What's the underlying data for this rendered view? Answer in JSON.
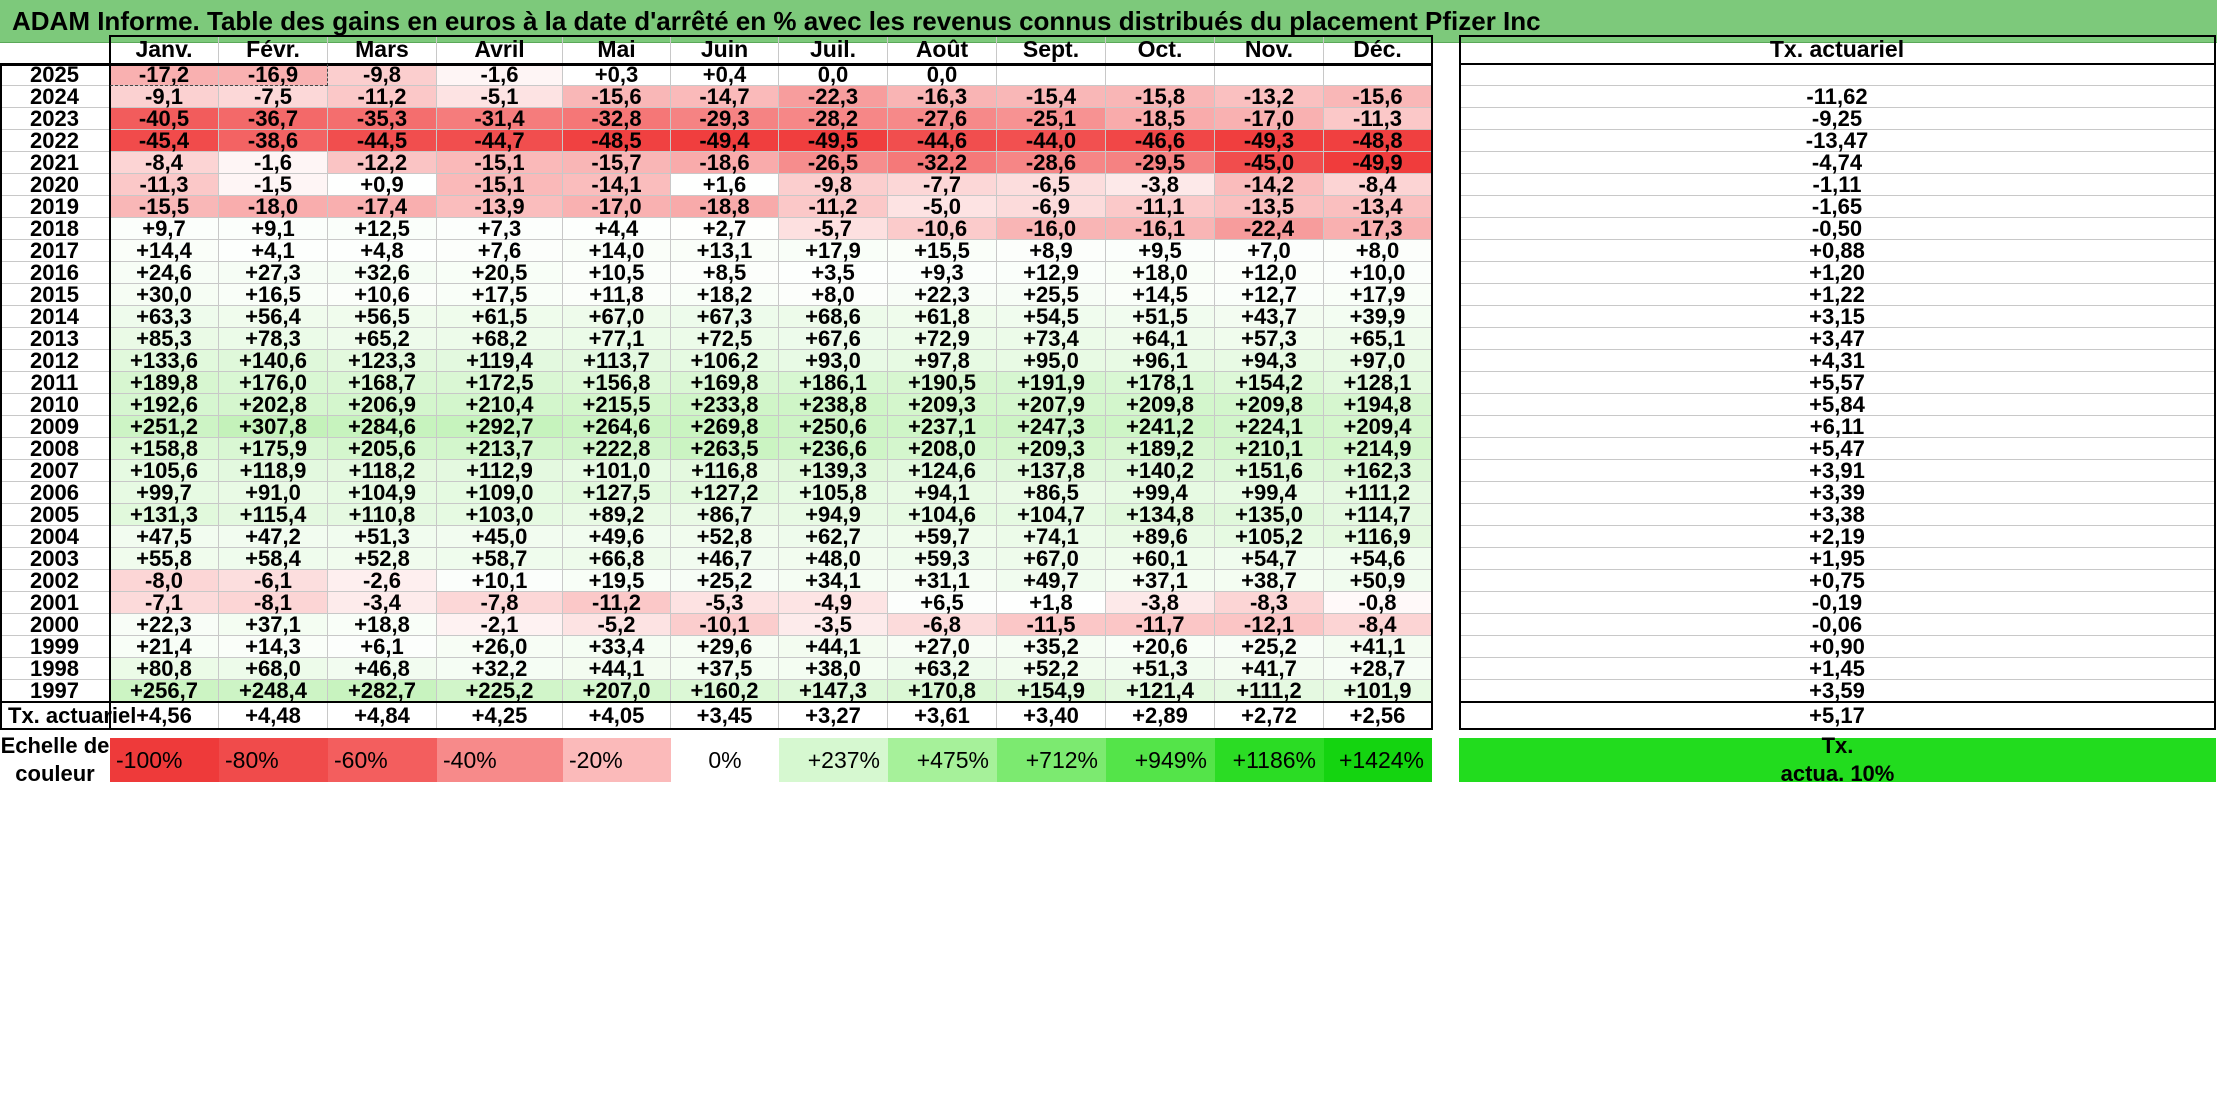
{
  "title": "ADAM Informe. Table des gains en euros à la date d'arrêté en % avec les revenus connus distribués du placement Pfizer Inc",
  "months": [
    "Janv.",
    "Févr.",
    "Mars",
    "Avril",
    "Mai",
    "Juin",
    "Juil.",
    "Août",
    "Sept.",
    "Oct.",
    "Nov.",
    "Déc."
  ],
  "rate_header": "Tx. actuariel",
  "rows": [
    {
      "year": "2025",
      "values": [
        "-17,2",
        "-16,9",
        "-9,8",
        "-1,6",
        "+0,3",
        "+0,4",
        "0,0",
        "0,0",
        "",
        "",
        "",
        ""
      ],
      "rate": ""
    },
    {
      "year": "2024",
      "values": [
        "-9,1",
        "-7,5",
        "-11,2",
        "-5,1",
        "-15,6",
        "-14,7",
        "-22,3",
        "-16,3",
        "-15,4",
        "-15,8",
        "-13,2",
        "-15,6"
      ],
      "rate": "-11,62"
    },
    {
      "year": "2023",
      "values": [
        "-40,5",
        "-36,7",
        "-35,3",
        "-31,4",
        "-32,8",
        "-29,3",
        "-28,2",
        "-27,6",
        "-25,1",
        "-18,5",
        "-17,0",
        "-11,3"
      ],
      "rate": "-9,25"
    },
    {
      "year": "2022",
      "values": [
        "-45,4",
        "-38,6",
        "-44,5",
        "-44,7",
        "-48,5",
        "-49,4",
        "-49,5",
        "-44,6",
        "-44,0",
        "-46,6",
        "-49,3",
        "-48,8"
      ],
      "rate": "-13,47"
    },
    {
      "year": "2021",
      "values": [
        "-8,4",
        "-1,6",
        "-12,2",
        "-15,1",
        "-15,7",
        "-18,6",
        "-26,5",
        "-32,2",
        "-28,6",
        "-29,5",
        "-45,0",
        "-49,9"
      ],
      "rate": "-4,74"
    },
    {
      "year": "2020",
      "values": [
        "-11,3",
        "-1,5",
        "+0,9",
        "-15,1",
        "-14,1",
        "+1,6",
        "-9,8",
        "-7,7",
        "-6,5",
        "-3,8",
        "-14,2",
        "-8,4"
      ],
      "rate": "-1,11"
    },
    {
      "year": "2019",
      "values": [
        "-15,5",
        "-18,0",
        "-17,4",
        "-13,9",
        "-17,0",
        "-18,8",
        "-11,2",
        "-5,0",
        "-6,9",
        "-11,1",
        "-13,5",
        "-13,4"
      ],
      "rate": "-1,65"
    },
    {
      "year": "2018",
      "values": [
        "+9,7",
        "+9,1",
        "+12,5",
        "+7,3",
        "+4,4",
        "+2,7",
        "-5,7",
        "-10,6",
        "-16,0",
        "-16,1",
        "-22,4",
        "-17,3"
      ],
      "rate": "-0,50"
    },
    {
      "year": "2017",
      "values": [
        "+14,4",
        "+4,1",
        "+4,8",
        "+7,6",
        "+14,0",
        "+13,1",
        "+17,9",
        "+15,5",
        "+8,9",
        "+9,5",
        "+7,0",
        "+8,0"
      ],
      "rate": "+0,88"
    },
    {
      "year": "2016",
      "values": [
        "+24,6",
        "+27,3",
        "+32,6",
        "+20,5",
        "+10,5",
        "+8,5",
        "+3,5",
        "+9,3",
        "+12,9",
        "+18,0",
        "+12,0",
        "+10,0"
      ],
      "rate": "+1,20"
    },
    {
      "year": "2015",
      "values": [
        "+30,0",
        "+16,5",
        "+10,6",
        "+17,5",
        "+11,8",
        "+18,2",
        "+8,0",
        "+22,3",
        "+25,5",
        "+14,5",
        "+12,7",
        "+17,9"
      ],
      "rate": "+1,22"
    },
    {
      "year": "2014",
      "values": [
        "+63,3",
        "+56,4",
        "+56,5",
        "+61,5",
        "+67,0",
        "+67,3",
        "+68,6",
        "+61,8",
        "+54,5",
        "+51,5",
        "+43,7",
        "+39,9"
      ],
      "rate": "+3,15"
    },
    {
      "year": "2013",
      "values": [
        "+85,3",
        "+78,3",
        "+65,2",
        "+68,2",
        "+77,1",
        "+72,5",
        "+67,6",
        "+72,9",
        "+73,4",
        "+64,1",
        "+57,3",
        "+65,1"
      ],
      "rate": "+3,47"
    },
    {
      "year": "2012",
      "values": [
        "+133,6",
        "+140,6",
        "+123,3",
        "+119,4",
        "+113,7",
        "+106,2",
        "+93,0",
        "+97,8",
        "+95,0",
        "+96,1",
        "+94,3",
        "+97,0"
      ],
      "rate": "+4,31"
    },
    {
      "year": "2011",
      "values": [
        "+189,8",
        "+176,0",
        "+168,7",
        "+172,5",
        "+156,8",
        "+169,8",
        "+186,1",
        "+190,5",
        "+191,9",
        "+178,1",
        "+154,2",
        "+128,1"
      ],
      "rate": "+5,57"
    },
    {
      "year": "2010",
      "values": [
        "+192,6",
        "+202,8",
        "+206,9",
        "+210,4",
        "+215,5",
        "+233,8",
        "+238,8",
        "+209,3",
        "+207,9",
        "+209,8",
        "+209,8",
        "+194,8"
      ],
      "rate": "+5,84"
    },
    {
      "year": "2009",
      "values": [
        "+251,2",
        "+307,8",
        "+284,6",
        "+292,7",
        "+264,6",
        "+269,8",
        "+250,6",
        "+237,1",
        "+247,3",
        "+241,2",
        "+224,1",
        "+209,4"
      ],
      "rate": "+6,11"
    },
    {
      "year": "2008",
      "values": [
        "+158,8",
        "+175,9",
        "+205,6",
        "+213,7",
        "+222,8",
        "+263,5",
        "+236,6",
        "+208,0",
        "+209,3",
        "+189,2",
        "+210,1",
        "+214,9"
      ],
      "rate": "+5,47"
    },
    {
      "year": "2007",
      "values": [
        "+105,6",
        "+118,9",
        "+118,2",
        "+112,9",
        "+101,0",
        "+116,8",
        "+139,3",
        "+124,6",
        "+137,8",
        "+140,2",
        "+151,6",
        "+162,3"
      ],
      "rate": "+3,91"
    },
    {
      "year": "2006",
      "values": [
        "+99,7",
        "+91,0",
        "+104,9",
        "+109,0",
        "+127,5",
        "+127,2",
        "+105,8",
        "+94,1",
        "+86,5",
        "+99,4",
        "+99,4",
        "+111,2"
      ],
      "rate": "+3,39"
    },
    {
      "year": "2005",
      "values": [
        "+131,3",
        "+115,4",
        "+110,8",
        "+103,0",
        "+89,2",
        "+86,7",
        "+94,9",
        "+104,6",
        "+104,7",
        "+134,8",
        "+135,0",
        "+114,7"
      ],
      "rate": "+3,38"
    },
    {
      "year": "2004",
      "values": [
        "+47,5",
        "+47,2",
        "+51,3",
        "+45,0",
        "+49,6",
        "+52,8",
        "+62,7",
        "+59,7",
        "+74,1",
        "+89,6",
        "+105,2",
        "+116,9"
      ],
      "rate": "+2,19"
    },
    {
      "year": "2003",
      "values": [
        "+55,8",
        "+58,4",
        "+52,8",
        "+58,7",
        "+66,8",
        "+46,7",
        "+48,0",
        "+59,3",
        "+67,0",
        "+60,1",
        "+54,7",
        "+54,6"
      ],
      "rate": "+1,95"
    },
    {
      "year": "2002",
      "values": [
        "-8,0",
        "-6,1",
        "-2,6",
        "+10,1",
        "+19,5",
        "+25,2",
        "+34,1",
        "+31,1",
        "+49,7",
        "+37,1",
        "+38,7",
        "+50,9"
      ],
      "rate": "+0,75"
    },
    {
      "year": "2001",
      "values": [
        "-7,1",
        "-8,1",
        "-3,4",
        "-7,8",
        "-11,2",
        "-5,3",
        "-4,9",
        "+6,5",
        "+1,8",
        "-3,8",
        "-8,3",
        "-0,8"
      ],
      "rate": "-0,19"
    },
    {
      "year": "2000",
      "values": [
        "+22,3",
        "+37,1",
        "+18,8",
        "-2,1",
        "-5,2",
        "-10,1",
        "-3,5",
        "-6,8",
        "-11,5",
        "-11,7",
        "-12,1",
        "-8,4"
      ],
      "rate": "-0,06"
    },
    {
      "year": "1999",
      "values": [
        "+21,4",
        "+14,3",
        "+6,1",
        "+26,0",
        "+33,4",
        "+29,6",
        "+44,1",
        "+27,0",
        "+35,2",
        "+20,6",
        "+25,2",
        "+41,1"
      ],
      "rate": "+0,90"
    },
    {
      "year": "1998",
      "values": [
        "+80,8",
        "+68,0",
        "+46,8",
        "+32,2",
        "+44,1",
        "+37,5",
        "+38,0",
        "+63,2",
        "+52,2",
        "+51,3",
        "+41,7",
        "+28,7"
      ],
      "rate": "+1,45"
    },
    {
      "year": "1997",
      "values": [
        "+256,7",
        "+248,4",
        "+282,7",
        "+225,2",
        "+207,0",
        "+160,2",
        "+147,3",
        "+170,8",
        "+154,9",
        "+121,4",
        "+111,2",
        "+101,9"
      ],
      "rate": "+3,59"
    }
  ],
  "footer": {
    "label": "Tx. actuariel",
    "values": [
      "+4,56",
      "+4,48",
      "+4,84",
      "+4,25",
      "+4,05",
      "+3,45",
      "+3,27",
      "+3,61",
      "+3,40",
      "+2,89",
      "+2,72",
      "+2,56"
    ],
    "rate": "+5,17"
  },
  "scale": {
    "label_line1": "Echelle de",
    "label_line2": "couleur",
    "items": [
      {
        "text": "-100%",
        "color": "#ee3a3a"
      },
      {
        "text": "-80%",
        "color": "#f04b4b"
      },
      {
        "text": "-60%",
        "color": "#f35e5e"
      },
      {
        "text": "-40%",
        "color": "#f78a8a"
      },
      {
        "text": "-20%",
        "color": "#fbbaba"
      },
      {
        "text": "0%",
        "color": "#ffffff"
      },
      {
        "text": "+237%",
        "color": "#d6f8d0"
      },
      {
        "text": "+475%",
        "color": "#a6f19a"
      },
      {
        "text": "+712%",
        "color": "#7cea70"
      },
      {
        "text": "+949%",
        "color": "#54e449"
      },
      {
        "text": "+1186%",
        "color": "#2bdc24"
      },
      {
        "text": "+1424%",
        "color": "#14d410"
      }
    ],
    "rate_label_line1": "Tx.",
    "rate_label_line2": "actua. 10%",
    "rate_color": "#22dc1e"
  }
}
